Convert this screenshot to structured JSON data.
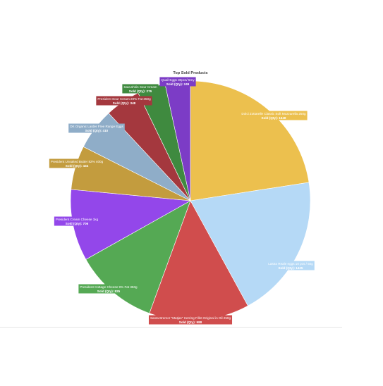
{
  "chart_data": {
    "type": "pie",
    "title": "Top Sold Products",
    "value_prefix": "Sold (Qty): ",
    "slices": [
      {
        "label": "Dolci Zottarelle Classic Soft Mozzarella 250g",
        "value": 1648,
        "color": "#ecc04e"
      },
      {
        "label": "Lastra Reale eggs 10 pcs / 50g",
        "value": 1425,
        "color": "#b5d9f6"
      },
      {
        "label": "Santa Bremor \"Matjas\" Herring Fillet Original in Oil 250g",
        "value": 988,
        "color": "#d04d4d"
      },
      {
        "label": "President Cottage Cheese 9% Fat 350g",
        "value": 825,
        "color": "#55a954"
      },
      {
        "label": "President Cream Cheese 1kg",
        "value": 706,
        "color": "#9347ea"
      },
      {
        "label": "President Unsalted Butter 82% 400g",
        "value": 434,
        "color": "#c39c3e"
      },
      {
        "label": "DK Organic Larder Free Range Eggs",
        "value": 410,
        "color": "#8fadc8"
      },
      {
        "label": "President Sour Cream 20% Fat 350g",
        "value": 348,
        "color": "#a4383e"
      },
      {
        "label": "Savushkin Sour Cream",
        "value": 276,
        "color": "#3f8a3f"
      },
      {
        "label": "Quail Eggs 30pcs/ 5my",
        "value": 249,
        "color": "#7c3cc6"
      }
    ]
  }
}
